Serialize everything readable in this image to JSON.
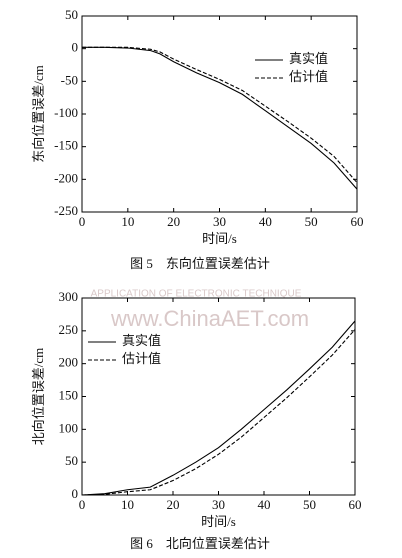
{
  "watermark": {
    "text": "APPLICATION OF ELECTRONIC TECHNIQUE",
    "url": "www.ChinaAET.com"
  },
  "chart_data": [
    {
      "type": "line",
      "caption": "图 5　东向位置误差估计",
      "xlabel": "时间/s",
      "ylabel": "东向位置误差/cm",
      "x": [
        0,
        5,
        10,
        15,
        17,
        20,
        25,
        30,
        35,
        40,
        45,
        50,
        55,
        60
      ],
      "series": [
        {
          "name": "真实值",
          "color": "#000000",
          "dashed": false,
          "values": [
            2,
            2,
            1,
            -3,
            -8,
            -20,
            -37,
            -52,
            -70,
            -95,
            -120,
            -145,
            -175,
            -215
          ]
        },
        {
          "name": "估计值",
          "color": "#000000",
          "dashed": true,
          "values": [
            2,
            2,
            2,
            -1,
            -5,
            -16,
            -32,
            -47,
            -64,
            -88,
            -112,
            -137,
            -165,
            -205
          ]
        }
      ],
      "xlim": [
        0,
        60
      ],
      "xticks": [
        0,
        10,
        20,
        30,
        40,
        50,
        60
      ],
      "ylim": [
        -250,
        50
      ],
      "yticks": [
        -250,
        -200,
        -150,
        -100,
        -50,
        0,
        50
      ],
      "legend": "upper-right"
    },
    {
      "type": "line",
      "caption": "图 6　北向位置误差估计",
      "xlabel": "时间/s",
      "ylabel": "北向位置误差/cm",
      "x": [
        0,
        5,
        10,
        15,
        20,
        25,
        30,
        35,
        40,
        45,
        50,
        55,
        60
      ],
      "series": [
        {
          "name": "真实值",
          "color": "#000000",
          "dashed": false,
          "values": [
            0,
            2,
            8,
            12,
            30,
            50,
            72,
            100,
            130,
            160,
            192,
            225,
            265
          ]
        },
        {
          "name": "估计值",
          "color": "#000000",
          "dashed": true,
          "values": [
            0,
            1,
            5,
            8,
            22,
            40,
            62,
            88,
            118,
            148,
            180,
            213,
            252
          ]
        }
      ],
      "xlim": [
        0,
        60
      ],
      "xticks": [
        0,
        10,
        20,
        30,
        40,
        50,
        60
      ],
      "ylim": [
        0,
        300
      ],
      "yticks": [
        0,
        50,
        100,
        150,
        200,
        250,
        300
      ],
      "legend": "upper-left"
    }
  ]
}
